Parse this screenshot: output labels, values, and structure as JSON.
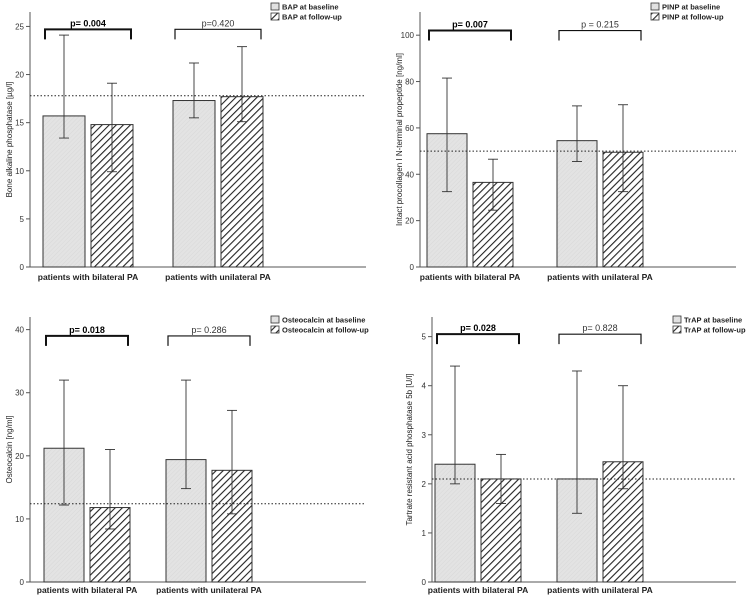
{
  "chart_data": [
    {
      "type": "bar",
      "ylabel": "Bone alkaline phosphatase [µg/l]",
      "ylim": [
        0,
        26.5
      ],
      "yticks": [
        0,
        5,
        10,
        15,
        20,
        25
      ],
      "categories": [
        "patients with bilateral PA",
        "patients with unilateral PA"
      ],
      "legend": {
        "placement": "top-right",
        "baseline": "BAP at baseline",
        "followup": "BAP at follow-up"
      },
      "series": [
        {
          "name": "BAP at baseline",
          "values": [
            15.7,
            17.3
          ],
          "err_low": [
            13.4,
            15.5
          ],
          "err_high": [
            24.1,
            21.2
          ]
        },
        {
          "name": "BAP at follow-up",
          "values": [
            14.8,
            17.7
          ],
          "err_low": [
            9.9,
            15.1
          ],
          "err_high": [
            19.1,
            22.9
          ]
        }
      ],
      "reference_line": 17.8,
      "pvalues": [
        {
          "text": "p= 0.004",
          "bold": true,
          "y": 24.7
        },
        {
          "text": "p=0.420",
          "bold": false,
          "y": 24.7
        }
      ]
    },
    {
      "type": "bar",
      "ylabel": "Intact procollagen I N-terminal propeptide [ng/ml]",
      "ylim": [
        0,
        110
      ],
      "yticks": [
        0,
        20,
        40,
        60,
        80,
        100
      ],
      "categories": [
        "patients with bilateral PA",
        "patients with unilateral PA"
      ],
      "legend": {
        "placement": "top-right",
        "baseline": "PINP at baseline",
        "followup": "PINP at follow-up"
      },
      "series": [
        {
          "name": "PINP at baseline",
          "values": [
            57.5,
            54.5
          ],
          "err_low": [
            32.5,
            45.5
          ],
          "err_high": [
            81.5,
            69.5
          ]
        },
        {
          "name": "PINP at follow-up",
          "values": [
            36.5,
            49.5
          ],
          "err_low": [
            24.5,
            32.5
          ],
          "err_high": [
            46.5,
            70.0
          ]
        }
      ],
      "reference_line": 50,
      "pvalues": [
        {
          "text": "p= 0.007",
          "bold": true,
          "y": 102
        },
        {
          "text": "p = 0.215",
          "bold": false,
          "y": 102
        }
      ]
    },
    {
      "type": "bar",
      "ylabel": "Osteocalcin [ng/ml]",
      "ylim": [
        0,
        42
      ],
      "yticks": [
        0,
        10,
        20,
        30,
        40
      ],
      "categories": [
        "patients with bilateral PA",
        "patients with unilateral PA"
      ],
      "legend": {
        "placement": "top-right",
        "baseline": "Osteocalcin at baseline",
        "followup": "Osteocalcin at follow-up"
      },
      "series": [
        {
          "name": "Osteocalcin at baseline",
          "values": [
            21.2,
            19.4
          ],
          "err_low": [
            12.2,
            14.8
          ],
          "err_high": [
            32.0,
            32.0
          ]
        },
        {
          "name": "Osteocalcin at follow-up",
          "values": [
            11.8,
            17.7
          ],
          "err_low": [
            8.4,
            10.8
          ],
          "err_high": [
            21.0,
            27.2
          ]
        }
      ],
      "reference_line": 12.4,
      "pvalues": [
        {
          "text": "p= 0.018",
          "bold": true,
          "y": 39
        },
        {
          "text": "p= 0.286",
          "bold": false,
          "y": 39
        }
      ]
    },
    {
      "type": "bar",
      "ylabel": "Tartrate resistant acid phosphatase 5b [U/l]",
      "ylim": [
        0,
        5.4
      ],
      "yticks": [
        0,
        1,
        2,
        3,
        4,
        5
      ],
      "categories": [
        "patients with bilateral PA",
        "patients with unilateral PA"
      ],
      "legend": {
        "placement": "top-right",
        "baseline": "TrAP at baseline",
        "followup": "TrAP at follow-up"
      },
      "series": [
        {
          "name": "TrAP at baseline",
          "values": [
            2.4,
            2.1
          ],
          "err_low": [
            2.0,
            1.4
          ],
          "err_high": [
            4.4,
            4.3
          ]
        },
        {
          "name": "TrAP at follow-up",
          "values": [
            2.1,
            2.45
          ],
          "err_low": [
            1.6,
            1.9
          ],
          "err_high": [
            2.6,
            4.0
          ]
        }
      ],
      "reference_line": 2.1,
      "pvalues": [
        {
          "text": "p= 0.028",
          "bold": true,
          "y": 5.05
        },
        {
          "text": "p= 0.828",
          "bold": false,
          "y": 5.05
        }
      ]
    }
  ],
  "style": {
    "baseline_fill": "#e3e3e3",
    "followup_fill": "#ffffff",
    "stroke": "#333333",
    "axis_color": "#555555"
  }
}
